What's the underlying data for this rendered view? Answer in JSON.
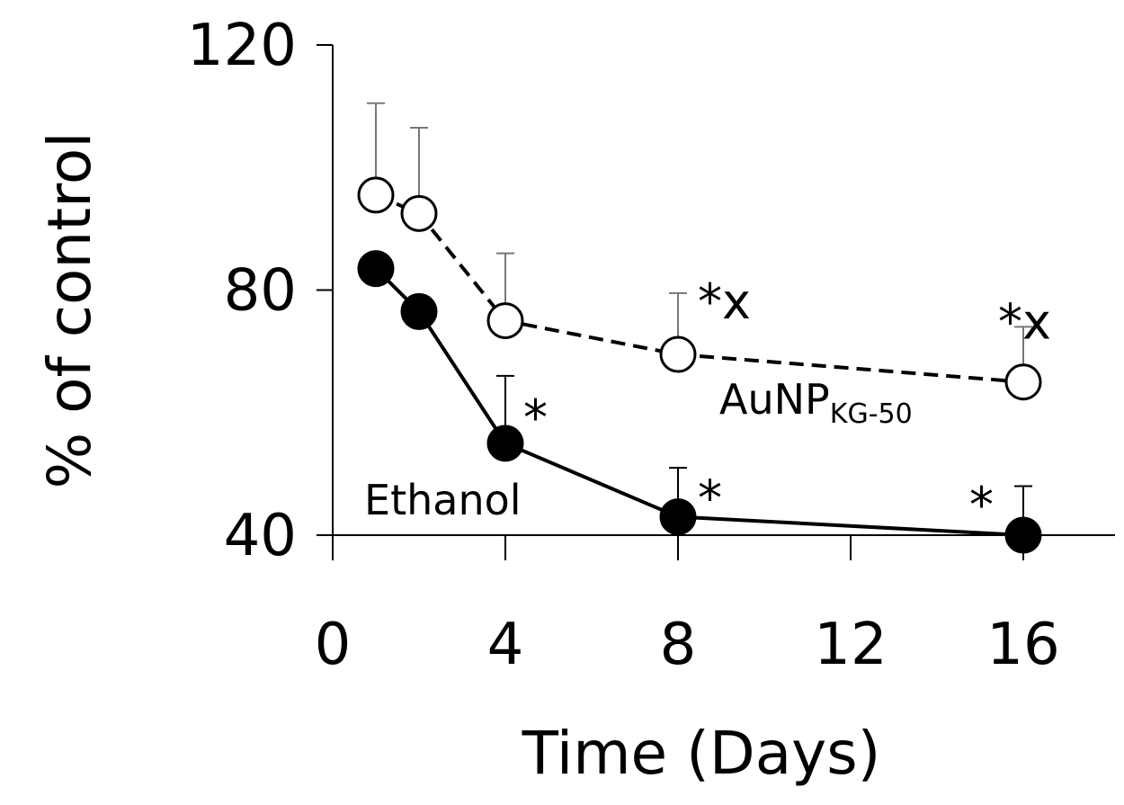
{
  "chart_data": {
    "type": "line",
    "title": "",
    "xlabel": "Time (Days)",
    "ylabel": "% of control",
    "xlim": [
      0,
      16
    ],
    "ylim": [
      40,
      120
    ],
    "xticks": [
      0,
      4,
      8,
      12,
      16
    ],
    "yticks": [
      40,
      80,
      120
    ],
    "grid": false,
    "legend": "none",
    "series": [
      {
        "name": "Ethanol",
        "style": "solid",
        "marker": "filled-circle",
        "color": "#000000",
        "x": [
          1,
          2,
          4,
          8,
          16
        ],
        "y": [
          83.5,
          76.5,
          55,
          43,
          40
        ],
        "error": [
          0,
          0,
          11,
          8,
          8
        ],
        "annotations": [
          "",
          "",
          "*",
          "*",
          "*"
        ]
      },
      {
        "name": "AuNP",
        "name_subscript": "KG-50",
        "style": "dashed",
        "marker": "open-circle",
        "color": "#000000",
        "x": [
          1,
          2,
          4,
          8,
          16
        ],
        "y": [
          95.5,
          92.5,
          75,
          69.5,
          65
        ],
        "error": [
          15,
          14,
          11,
          10,
          9
        ],
        "annotations": [
          "",
          "",
          "",
          "*x",
          "*x"
        ]
      }
    ]
  }
}
